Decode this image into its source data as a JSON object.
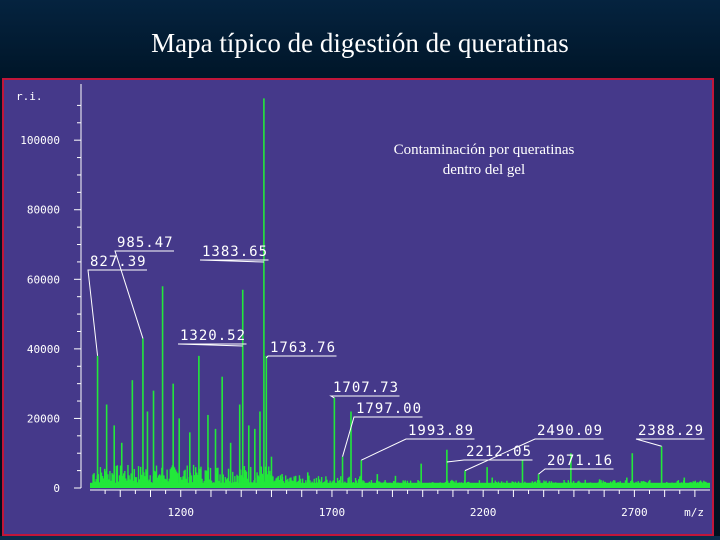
{
  "slide": {
    "title": "Mapa típico de digestión de queratinas",
    "annotation_line1": "Contaminación por queratinas",
    "annotation_line2": "dentro del gel"
  },
  "colors": {
    "frame": "#c0163a",
    "plot_bg": "#45398a",
    "spectrum": "#22e83a",
    "axis": "#ffffff"
  },
  "chart_data": {
    "type": "line",
    "title": "",
    "xlabel": "m/z",
    "ylabel": "r.i.",
    "xlim": [
      900,
      2950
    ],
    "ylim": [
      0,
      115000
    ],
    "xticks": [
      1200,
      1700,
      2200,
      2700
    ],
    "xtick_labels": [
      "1200",
      "1700",
      "2200",
      "2700"
    ],
    "yticks": [
      0,
      20000,
      40000,
      60000,
      80000,
      100000
    ],
    "ytick_labels": [
      "0",
      "20000",
      "40000",
      "60000",
      "80000",
      "100000"
    ],
    "grid": false,
    "peaks": [
      {
        "mz": 925,
        "ri": 38000
      },
      {
        "mz": 955,
        "ri": 24000
      },
      {
        "mz": 980,
        "ri": 18000
      },
      {
        "mz": 1005,
        "ri": 13000
      },
      {
        "mz": 1040,
        "ri": 31000
      },
      {
        "mz": 1075,
        "ri": 43000
      },
      {
        "mz": 1090,
        "ri": 22000
      },
      {
        "mz": 1110,
        "ri": 28000
      },
      {
        "mz": 1140,
        "ri": 58000
      },
      {
        "mz": 1175,
        "ri": 30000
      },
      {
        "mz": 1195,
        "ri": 20000
      },
      {
        "mz": 1230,
        "ri": 16000
      },
      {
        "mz": 1260,
        "ri": 38000
      },
      {
        "mz": 1290,
        "ri": 21000
      },
      {
        "mz": 1315,
        "ri": 17000
      },
      {
        "mz": 1337,
        "ri": 32000
      },
      {
        "mz": 1365,
        "ri": 13000
      },
      {
        "mz": 1395,
        "ri": 24000
      },
      {
        "mz": 1405,
        "ri": 57000
      },
      {
        "mz": 1425,
        "ri": 18000
      },
      {
        "mz": 1445,
        "ri": 17000
      },
      {
        "mz": 1462,
        "ri": 22000
      },
      {
        "mz": 1475,
        "ri": 112000
      },
      {
        "mz": 1483,
        "ri": 38000
      },
      {
        "mz": 1500,
        "ri": 9000
      },
      {
        "mz": 1535,
        "ri": 4000
      },
      {
        "mz": 1580,
        "ri": 3500
      },
      {
        "mz": 1620,
        "ri": 4500
      },
      {
        "mz": 1708,
        "ri": 26000
      },
      {
        "mz": 1735,
        "ri": 9000
      },
      {
        "mz": 1763,
        "ri": 22000
      },
      {
        "mz": 1797,
        "ri": 8000
      },
      {
        "mz": 1850,
        "ri": 4000
      },
      {
        "mz": 1910,
        "ri": 3500
      },
      {
        "mz": 1995,
        "ri": 7000
      },
      {
        "mz": 2080,
        "ri": 11000
      },
      {
        "mz": 2140,
        "ri": 5000
      },
      {
        "mz": 2213,
        "ri": 6000
      },
      {
        "mz": 2230,
        "ri": 3000
      },
      {
        "mz": 2330,
        "ri": 8000
      },
      {
        "mz": 2383,
        "ri": 4000
      },
      {
        "mz": 2490,
        "ri": 10000
      },
      {
        "mz": 2585,
        "ri": 2500
      },
      {
        "mz": 2675,
        "ri": 3000
      },
      {
        "mz": 2693,
        "ri": 10000
      },
      {
        "mz": 2790,
        "ri": 12000
      },
      {
        "mz": 2865,
        "ri": 3000
      }
    ],
    "annotations": [
      {
        "label": "827.39",
        "mz": 925
      },
      {
        "label": "985.47",
        "mz": 1075
      },
      {
        "label": "1383.65",
        "mz": 1475
      },
      {
        "label": "1320.52",
        "mz": 1405
      },
      {
        "label": "1763.76",
        "mz": 1483
      },
      {
        "label": "1707.73",
        "mz": 1708
      },
      {
        "label": "1797.00",
        "mz": 1735
      },
      {
        "label": "1993.89",
        "mz": 1797
      },
      {
        "label": "2212.05",
        "mz": 2080
      },
      {
        "label": "2490.09",
        "mz": 2140
      },
      {
        "label": "2071.16",
        "mz": 2383
      },
      {
        "label": "2388.29",
        "mz": 2790
      }
    ]
  }
}
